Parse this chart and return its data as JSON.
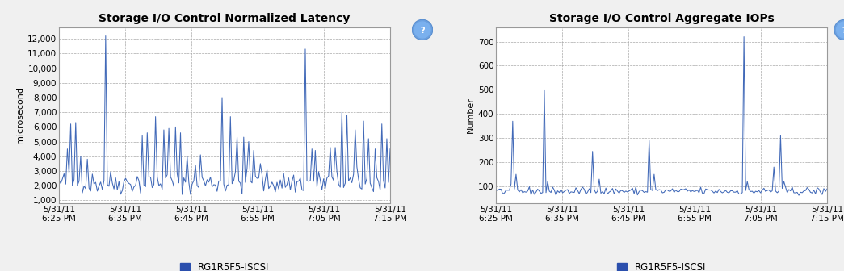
{
  "chart1": {
    "title": "Storage I/O Control Normalized Latency",
    "ylabel": "microsecond",
    "yticks": [
      1000,
      2000,
      3000,
      4000,
      5000,
      6000,
      7000,
      8000,
      9000,
      10000,
      11000,
      12000
    ],
    "ytick_labels": [
      "1,000",
      "2,000",
      "3,000",
      "4,000",
      "5,000",
      "6,000",
      "7,000",
      "8,000",
      "9,000",
      "10,000",
      "11,000",
      "12,000"
    ],
    "ylim": [
      800,
      12800
    ],
    "xtick_labels": [
      "5/31/11\n6:25 PM",
      "5/31/11\n6:35 PM",
      "5/31/11\n6:45 PM",
      "5/31/11\n6:55 PM",
      "5/31/11\n7:05 PM",
      "5/31/11\n7:15 PM"
    ],
    "line_color": "#4169b8",
    "legend_label": "RG1R5F5-ISCSI",
    "legend_color": "#2b4fad"
  },
  "chart2": {
    "title": "Storage I/O Control Aggregate IOPs",
    "ylabel": "Number",
    "yticks": [
      100,
      200,
      300,
      400,
      500,
      600,
      700
    ],
    "ytick_labels": [
      "100",
      "200",
      "300",
      "400",
      "500",
      "600",
      "700"
    ],
    "ylim": [
      30,
      760
    ],
    "xtick_labels": [
      "5/31/11\n6:25 PM",
      "5/31/11\n6:35 PM",
      "5/31/11\n6:45 PM",
      "5/31/11\n6:55 PM",
      "5/31/11\n7:05 PM",
      "5/31/11\n7:15 PM"
    ],
    "line_color": "#4169b8",
    "legend_label": "RG1R5F5-ISCSI",
    "legend_color": "#2b4fad"
  },
  "bg_color": "#f0f0f0",
  "plot_bg_color": "#ffffff",
  "grid_color": "#aaaaaa",
  "title_fontsize": 10,
  "axis_fontsize": 8,
  "ylabel_fontsize": 8,
  "legend_fontsize": 8.5,
  "tick_fontsize": 7.5
}
